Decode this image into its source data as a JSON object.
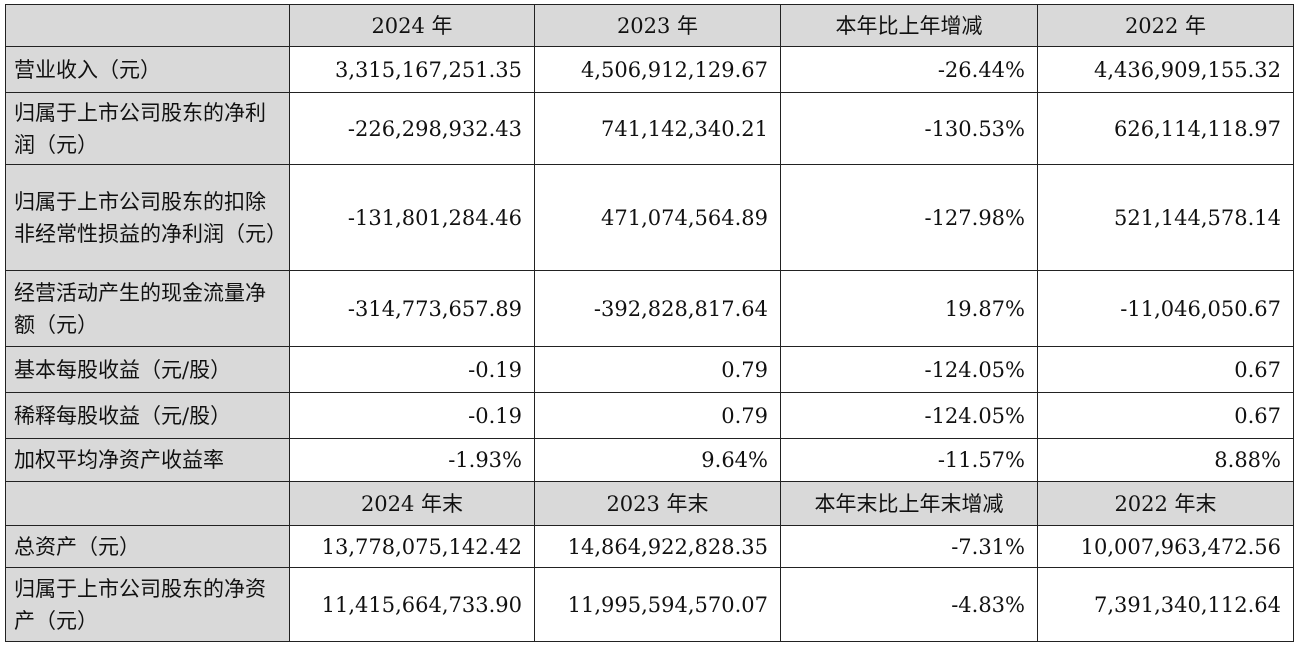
{
  "header1": [
    "2024 年",
    "2023 年",
    "本年比上年增减",
    "2022 年"
  ],
  "rows1": [
    {
      "label": "营业收入（元）",
      "values": [
        "3,315,167,251.35",
        "4,506,912,129.67",
        "-26.44%",
        "4,436,909,155.32"
      ]
    },
    {
      "label": "归属于上市公司股东的净利润（元）",
      "values": [
        "-226,298,932.43",
        "741,142,340.21",
        "-130.53%",
        "626,114,118.97"
      ]
    },
    {
      "label": "归属于上市公司股东的扣除非经常性损益的净利润（元）",
      "values": [
        "-131,801,284.46",
        "471,074,564.89",
        "-127.98%",
        "521,144,578.14"
      ]
    },
    {
      "label": "经营活动产生的现金流量净额（元）",
      "values": [
        "-314,773,657.89",
        "-392,828,817.64",
        "19.87%",
        "-11,046,050.67"
      ]
    },
    {
      "label": "基本每股收益（元/股）",
      "values": [
        "-0.19",
        "0.79",
        "-124.05%",
        "0.67"
      ]
    },
    {
      "label": "稀释每股收益（元/股）",
      "values": [
        "-0.19",
        "0.79",
        "-124.05%",
        "0.67"
      ]
    },
    {
      "label": "加权平均净资产收益率",
      "values": [
        "-1.93%",
        "9.64%",
        "-11.57%",
        "8.88%"
      ]
    }
  ],
  "header2": [
    "2024 年末",
    "2023 年末",
    "本年末比上年末增减",
    "2022 年末"
  ],
  "rows2": [
    {
      "label": "总资产（元）",
      "values": [
        "13,778,075,142.42",
        "14,864,922,828.35",
        "-7.31%",
        "10,007,963,472.56"
      ]
    },
    {
      "label": "归属于上市公司股东的净资产（元）",
      "values": [
        "11,415,664,733.90",
        "11,995,594,570.07",
        "-4.83%",
        "7,391,340,112.64"
      ]
    }
  ]
}
